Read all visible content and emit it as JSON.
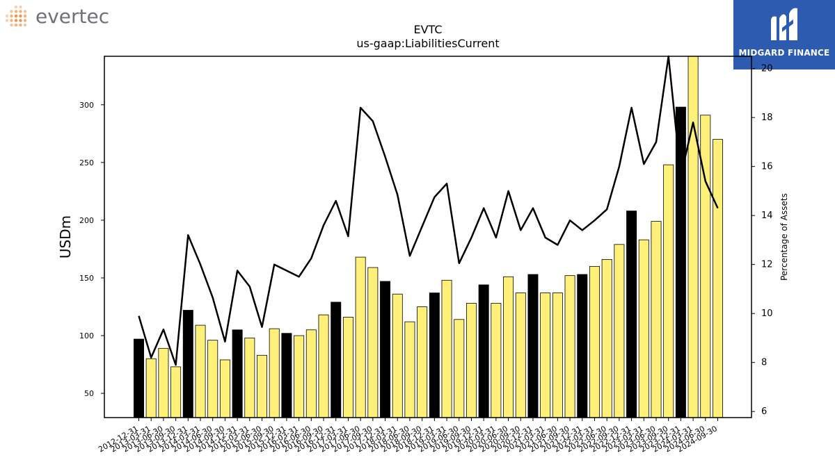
{
  "logos": {
    "left_text": "evertec",
    "right_text": "MIDGARD FINANCE",
    "left_color": "#6e7176",
    "left_dot_color": "#f07b21",
    "right_bg": "#2d5bb0"
  },
  "chart_data": {
    "type": "bar",
    "title": "EVTC",
    "subtitle": "us-gaap:LiabilitiesCurrent",
    "ylabel": "USDm",
    "ylabel_right": "Percentage of Assets",
    "ylim": [
      29,
      342
    ],
    "ylim_right": [
      5.75,
      20.5
    ],
    "yticks": [
      50,
      100,
      150,
      200,
      250,
      300
    ],
    "yticks_right": [
      6,
      8,
      10,
      12,
      14,
      16,
      18,
      20
    ],
    "grid": false,
    "bar_colors": {
      "highlight": "#000000",
      "normal": "#fff07a"
    },
    "line_color": "#000000",
    "categories": [
      "2012-12-31",
      "2013-03-31",
      "2013-06-30",
      "2013-09-30",
      "2013-12-31",
      "2014-03-31",
      "2014-06-30",
      "2014-09-30",
      "2014-12-31",
      "2015-03-31",
      "2015-06-30",
      "2015-09-30",
      "2015-12-31",
      "2016-03-31",
      "2016-06-30",
      "2016-09-30",
      "2016-12-31",
      "2017-03-31",
      "2017-06-30",
      "2017-09-30",
      "2017-12-31",
      "2018-03-31",
      "2018-06-30",
      "2018-09-30",
      "2018-12-31",
      "2019-03-31",
      "2019-06-30",
      "2019-09-30",
      "2019-12-31",
      "2020-03-31",
      "2020-06-30",
      "2020-09-30",
      "2020-12-31",
      "2021-03-31",
      "2021-06-30",
      "2021-09-30",
      "2021-12-31",
      "2022-03-31",
      "2022-06-30",
      "2022-09-30",
      "2022-12-31",
      "2023-03-31",
      "2023-06-30",
      "2023-09-30",
      "2023-12-31",
      "2024-03-31",
      "2024-06-30",
      "2024-09-30"
    ],
    "series": [
      {
        "type": "bar",
        "values": [
          97,
          80,
          89,
          73,
          122,
          109,
          96,
          79,
          105,
          98,
          83,
          106,
          102,
          100,
          105,
          118,
          129,
          116,
          168,
          159,
          147,
          136,
          112,
          125,
          137,
          148,
          114,
          128,
          144,
          128,
          151,
          137,
          153,
          137,
          137,
          152,
          153,
          160,
          166,
          179,
          208,
          183,
          199,
          248,
          298,
          342,
          291,
          270
        ],
        "highlight": [
          true,
          false,
          false,
          false,
          true,
          false,
          false,
          false,
          true,
          false,
          false,
          false,
          true,
          false,
          false,
          false,
          true,
          false,
          false,
          false,
          true,
          false,
          false,
          false,
          true,
          false,
          false,
          false,
          true,
          false,
          false,
          false,
          true,
          false,
          false,
          false,
          true,
          false,
          false,
          false,
          true,
          false,
          false,
          false,
          true,
          false,
          false,
          false
        ]
      },
      {
        "type": "line",
        "axis": "right",
        "values": [
          9.9,
          8.2,
          9.35,
          7.9,
          13.2,
          12.0,
          10.65,
          8.85,
          11.75,
          11.1,
          9.45,
          12.0,
          11.75,
          11.5,
          12.25,
          13.6,
          14.6,
          13.15,
          18.4,
          17.85,
          16.4,
          14.85,
          12.35,
          13.55,
          14.75,
          15.3,
          12.05,
          13.1,
          14.3,
          13.1,
          15.0,
          13.4,
          14.3,
          13.1,
          12.8,
          13.8,
          13.4,
          13.8,
          14.25,
          16.0,
          18.4,
          16.1,
          17.0,
          20.5,
          15.6,
          17.8,
          15.4,
          14.3
        ]
      }
    ]
  }
}
